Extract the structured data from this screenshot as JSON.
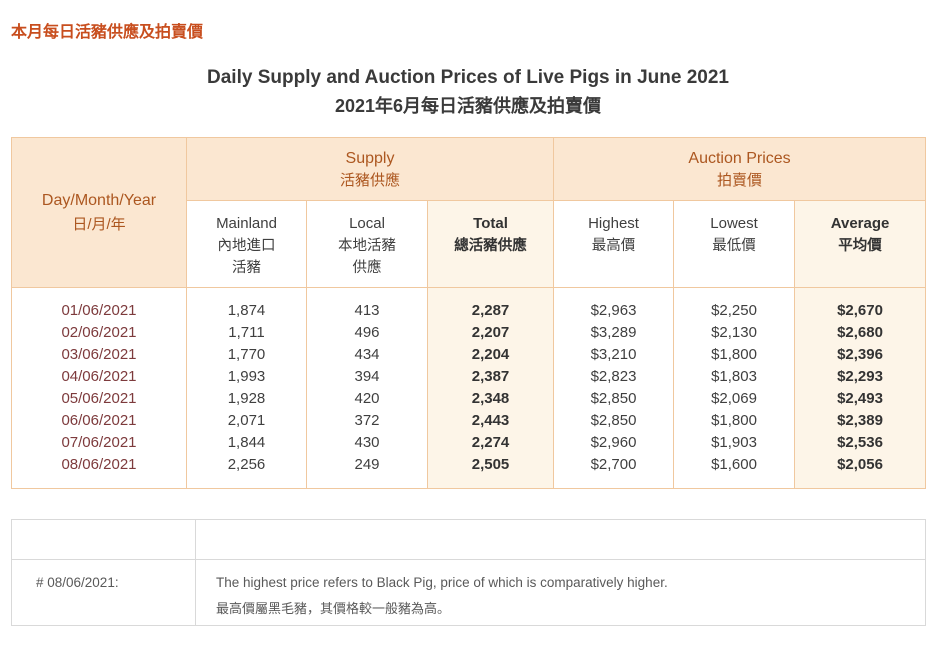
{
  "page_heading": "本月每日活豬供應及拍賣價",
  "title": {
    "en": "Daily Supply and Auction Prices of Live Pigs in June 2021",
    "zh": "2021年6月每日活豬供應及拍賣價"
  },
  "table": {
    "date_header": {
      "en": "Day/Month/Year",
      "zh": "日/月/年"
    },
    "groups": [
      {
        "en": "Supply",
        "zh": "活豬供應"
      },
      {
        "en": "Auction Prices",
        "zh": "拍賣價"
      }
    ],
    "columns": [
      {
        "key": "mainland",
        "en": "Mainland",
        "zh": "內地進口\n活豬"
      },
      {
        "key": "local",
        "en": "Local",
        "zh": "本地活豬\n供應"
      },
      {
        "key": "total",
        "en": "Total",
        "zh": "總活豬供應"
      },
      {
        "key": "highest",
        "en": "Highest",
        "zh": "最高價"
      },
      {
        "key": "lowest",
        "en": "Lowest",
        "zh": "最低價"
      },
      {
        "key": "average",
        "en": "Average",
        "zh": "平均價"
      }
    ],
    "rows": [
      {
        "date": "01/06/2021",
        "mainland": "1,874",
        "local": "413",
        "total": "2,287",
        "highest": "$2,963",
        "lowest": "$2,250",
        "average": "$2,670"
      },
      {
        "date": "02/06/2021",
        "mainland": "1,711",
        "local": "496",
        "total": "2,207",
        "highest": "$3,289",
        "lowest": "$2,130",
        "average": "$2,680"
      },
      {
        "date": "03/06/2021",
        "mainland": "1,770",
        "local": "434",
        "total": "2,204",
        "highest": "$3,210",
        "lowest": "$1,800",
        "average": "$2,396"
      },
      {
        "date": "04/06/2021",
        "mainland": "1,993",
        "local": "394",
        "total": "2,387",
        "highest": "$2,823",
        "lowest": "$1,803",
        "average": "$2,293"
      },
      {
        "date": "05/06/2021",
        "mainland": "1,928",
        "local": "420",
        "total": "2,348",
        "highest": "$2,850",
        "lowest": "$2,069",
        "average": "$2,493"
      },
      {
        "date": "06/06/2021",
        "mainland": "2,071",
        "local": "372",
        "total": "2,443",
        "highest": "$2,850",
        "lowest": "$1,800",
        "average": "$2,389"
      },
      {
        "date": "07/06/2021",
        "mainland": "1,844",
        "local": "430",
        "total": "2,274",
        "highest": "$2,960",
        "lowest": "$1,903",
        "average": "$2,536"
      },
      {
        "date": "08/06/2021",
        "mainland": "2,256",
        "local": "249",
        "total": "2,505",
        "highest": "$2,700",
        "lowest": "$1,600",
        "average": "$2,056"
      }
    ]
  },
  "footnote": {
    "label": "# 08/06/2021:",
    "text_en": "The highest price refers to Black Pig, price of which is comparatively higher.",
    "text_zh": "最高價屬黑毛豬，其價格較一般豬為高。"
  },
  "colors": {
    "accent": "#C84E1E",
    "table_border": "#F0C89F",
    "header_bg": "#FBE7D1",
    "emphasis_bg": "#FDF5E8",
    "group_text": "#AC5720",
    "date_text": "#7D3A3C",
    "footnote_border": "#D9D9D9"
  }
}
